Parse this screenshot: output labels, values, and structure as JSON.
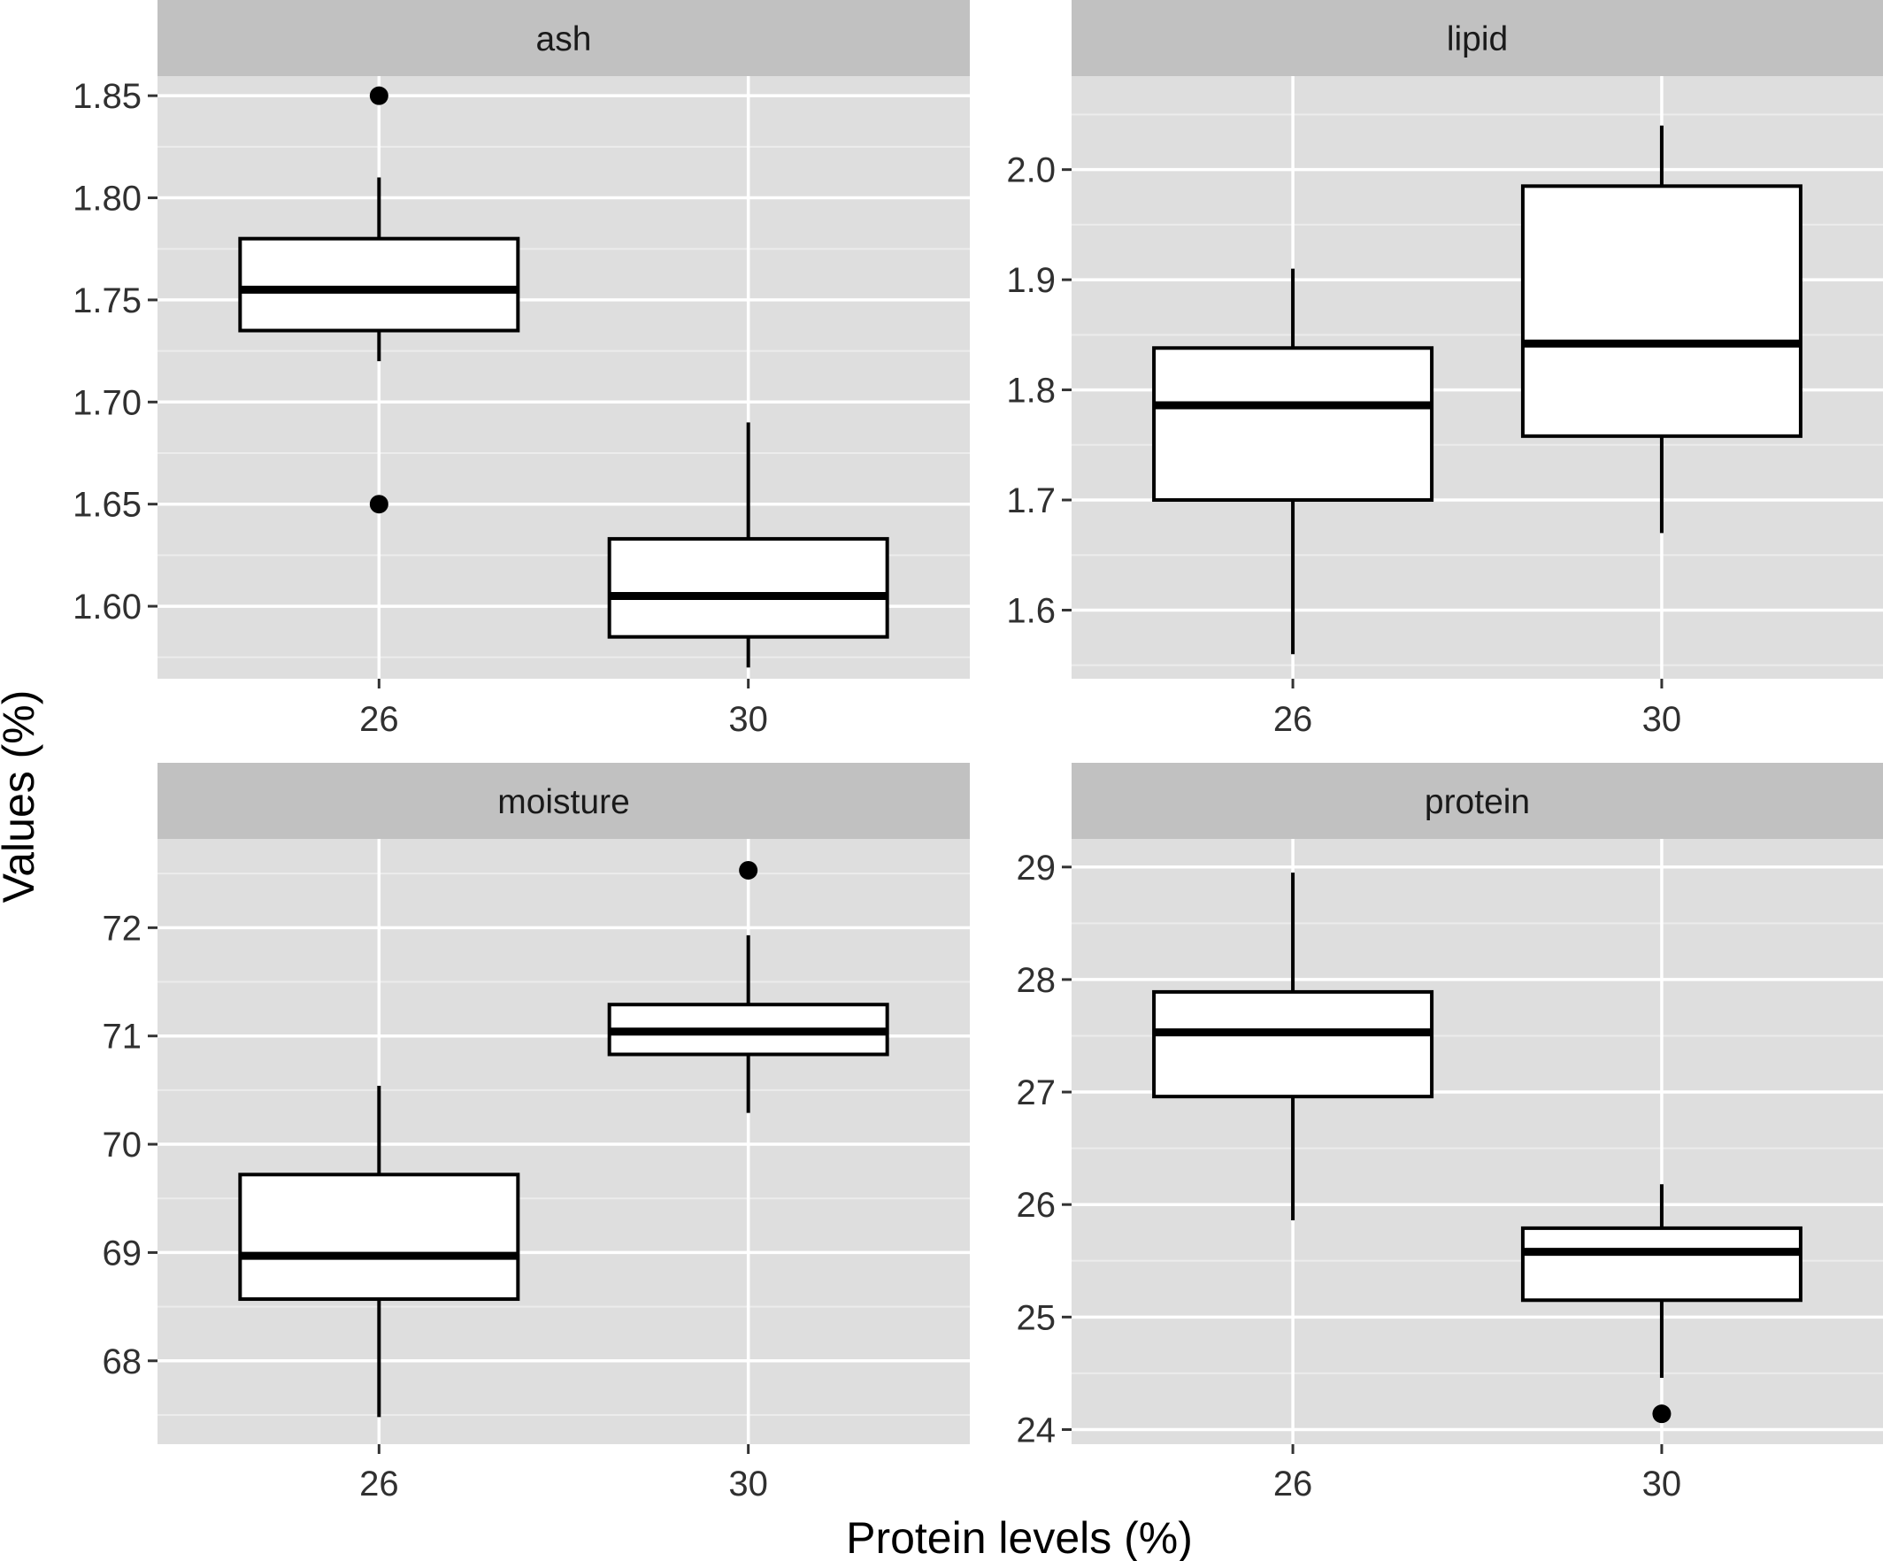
{
  "chart_data": {
    "type": "box",
    "layout": "facet-grid-2x2",
    "xlabel": "Protein levels (%)",
    "ylabel": "Values (%)",
    "categories": [
      "26",
      "30"
    ],
    "grid": true,
    "panels": [
      {
        "name": "ash",
        "ylim": [
          1.5645,
          1.8596
        ],
        "yticks": [
          1.6,
          1.65,
          1.7,
          1.75,
          1.8,
          1.85
        ],
        "ytick_labels": [
          "1.60",
          "1.65",
          "1.70",
          "1.75",
          "1.80",
          "1.85"
        ],
        "boxes": [
          {
            "category": "26",
            "lower_whisker": 1.72,
            "q1": 1.735,
            "median": 1.755,
            "q3": 1.78,
            "upper_whisker": 1.81,
            "outliers": [
              1.85,
              1.65
            ]
          },
          {
            "category": "30",
            "lower_whisker": 1.57,
            "q1": 1.585,
            "median": 1.605,
            "q3": 1.633,
            "upper_whisker": 1.69,
            "outliers": []
          }
        ]
      },
      {
        "name": "lipid",
        "ylim": [
          1.5377,
          2.0849
        ],
        "yticks": [
          1.6,
          1.7,
          1.8,
          1.9,
          2.0
        ],
        "ytick_labels": [
          "1.6",
          "1.7",
          "1.8",
          "1.9",
          "2.0"
        ],
        "boxes": [
          {
            "category": "26",
            "lower_whisker": 1.56,
            "q1": 1.7,
            "median": 1.786,
            "q3": 1.838,
            "upper_whisker": 1.91,
            "outliers": []
          },
          {
            "category": "30",
            "lower_whisker": 1.67,
            "q1": 1.758,
            "median": 1.842,
            "q3": 1.985,
            "upper_whisker": 2.04,
            "outliers": []
          }
        ]
      },
      {
        "name": "moisture",
        "ylim": [
          67.23,
          72.82
        ],
        "yticks": [
          68,
          69,
          70,
          71,
          72
        ],
        "ytick_labels": [
          "68",
          "69",
          "70",
          "71",
          "72"
        ],
        "boxes": [
          {
            "category": "26",
            "lower_whisker": 67.48,
            "q1": 68.57,
            "median": 68.97,
            "q3": 69.72,
            "upper_whisker": 70.54,
            "outliers": []
          },
          {
            "category": "30",
            "lower_whisker": 70.29,
            "q1": 70.83,
            "median": 71.04,
            "q3": 71.29,
            "upper_whisker": 71.93,
            "outliers": [
              72.53
            ]
          }
        ]
      },
      {
        "name": "protein",
        "ylim": [
          23.87,
          29.25
        ],
        "yticks": [
          24,
          25,
          26,
          27,
          28,
          29
        ],
        "ytick_labels": [
          "24",
          "25",
          "26",
          "27",
          "28",
          "29"
        ],
        "boxes": [
          {
            "category": "26",
            "lower_whisker": 25.86,
            "q1": 26.96,
            "median": 27.53,
            "q3": 27.89,
            "upper_whisker": 28.95,
            "outliers": []
          },
          {
            "category": "30",
            "lower_whisker": 24.46,
            "q1": 25.15,
            "median": 25.58,
            "q3": 25.79,
            "upper_whisker": 26.18,
            "outliers": [
              24.14
            ]
          }
        ]
      }
    ]
  },
  "colors": {
    "panel_background": "#dedede",
    "strip_background": "#c1c1c1",
    "grid_major": "#ffffff",
    "grid_minor": "#ececec",
    "box_fill": "#ffffff",
    "box_stroke": "#000000",
    "outlier": "#000000",
    "tick": "#333333"
  }
}
